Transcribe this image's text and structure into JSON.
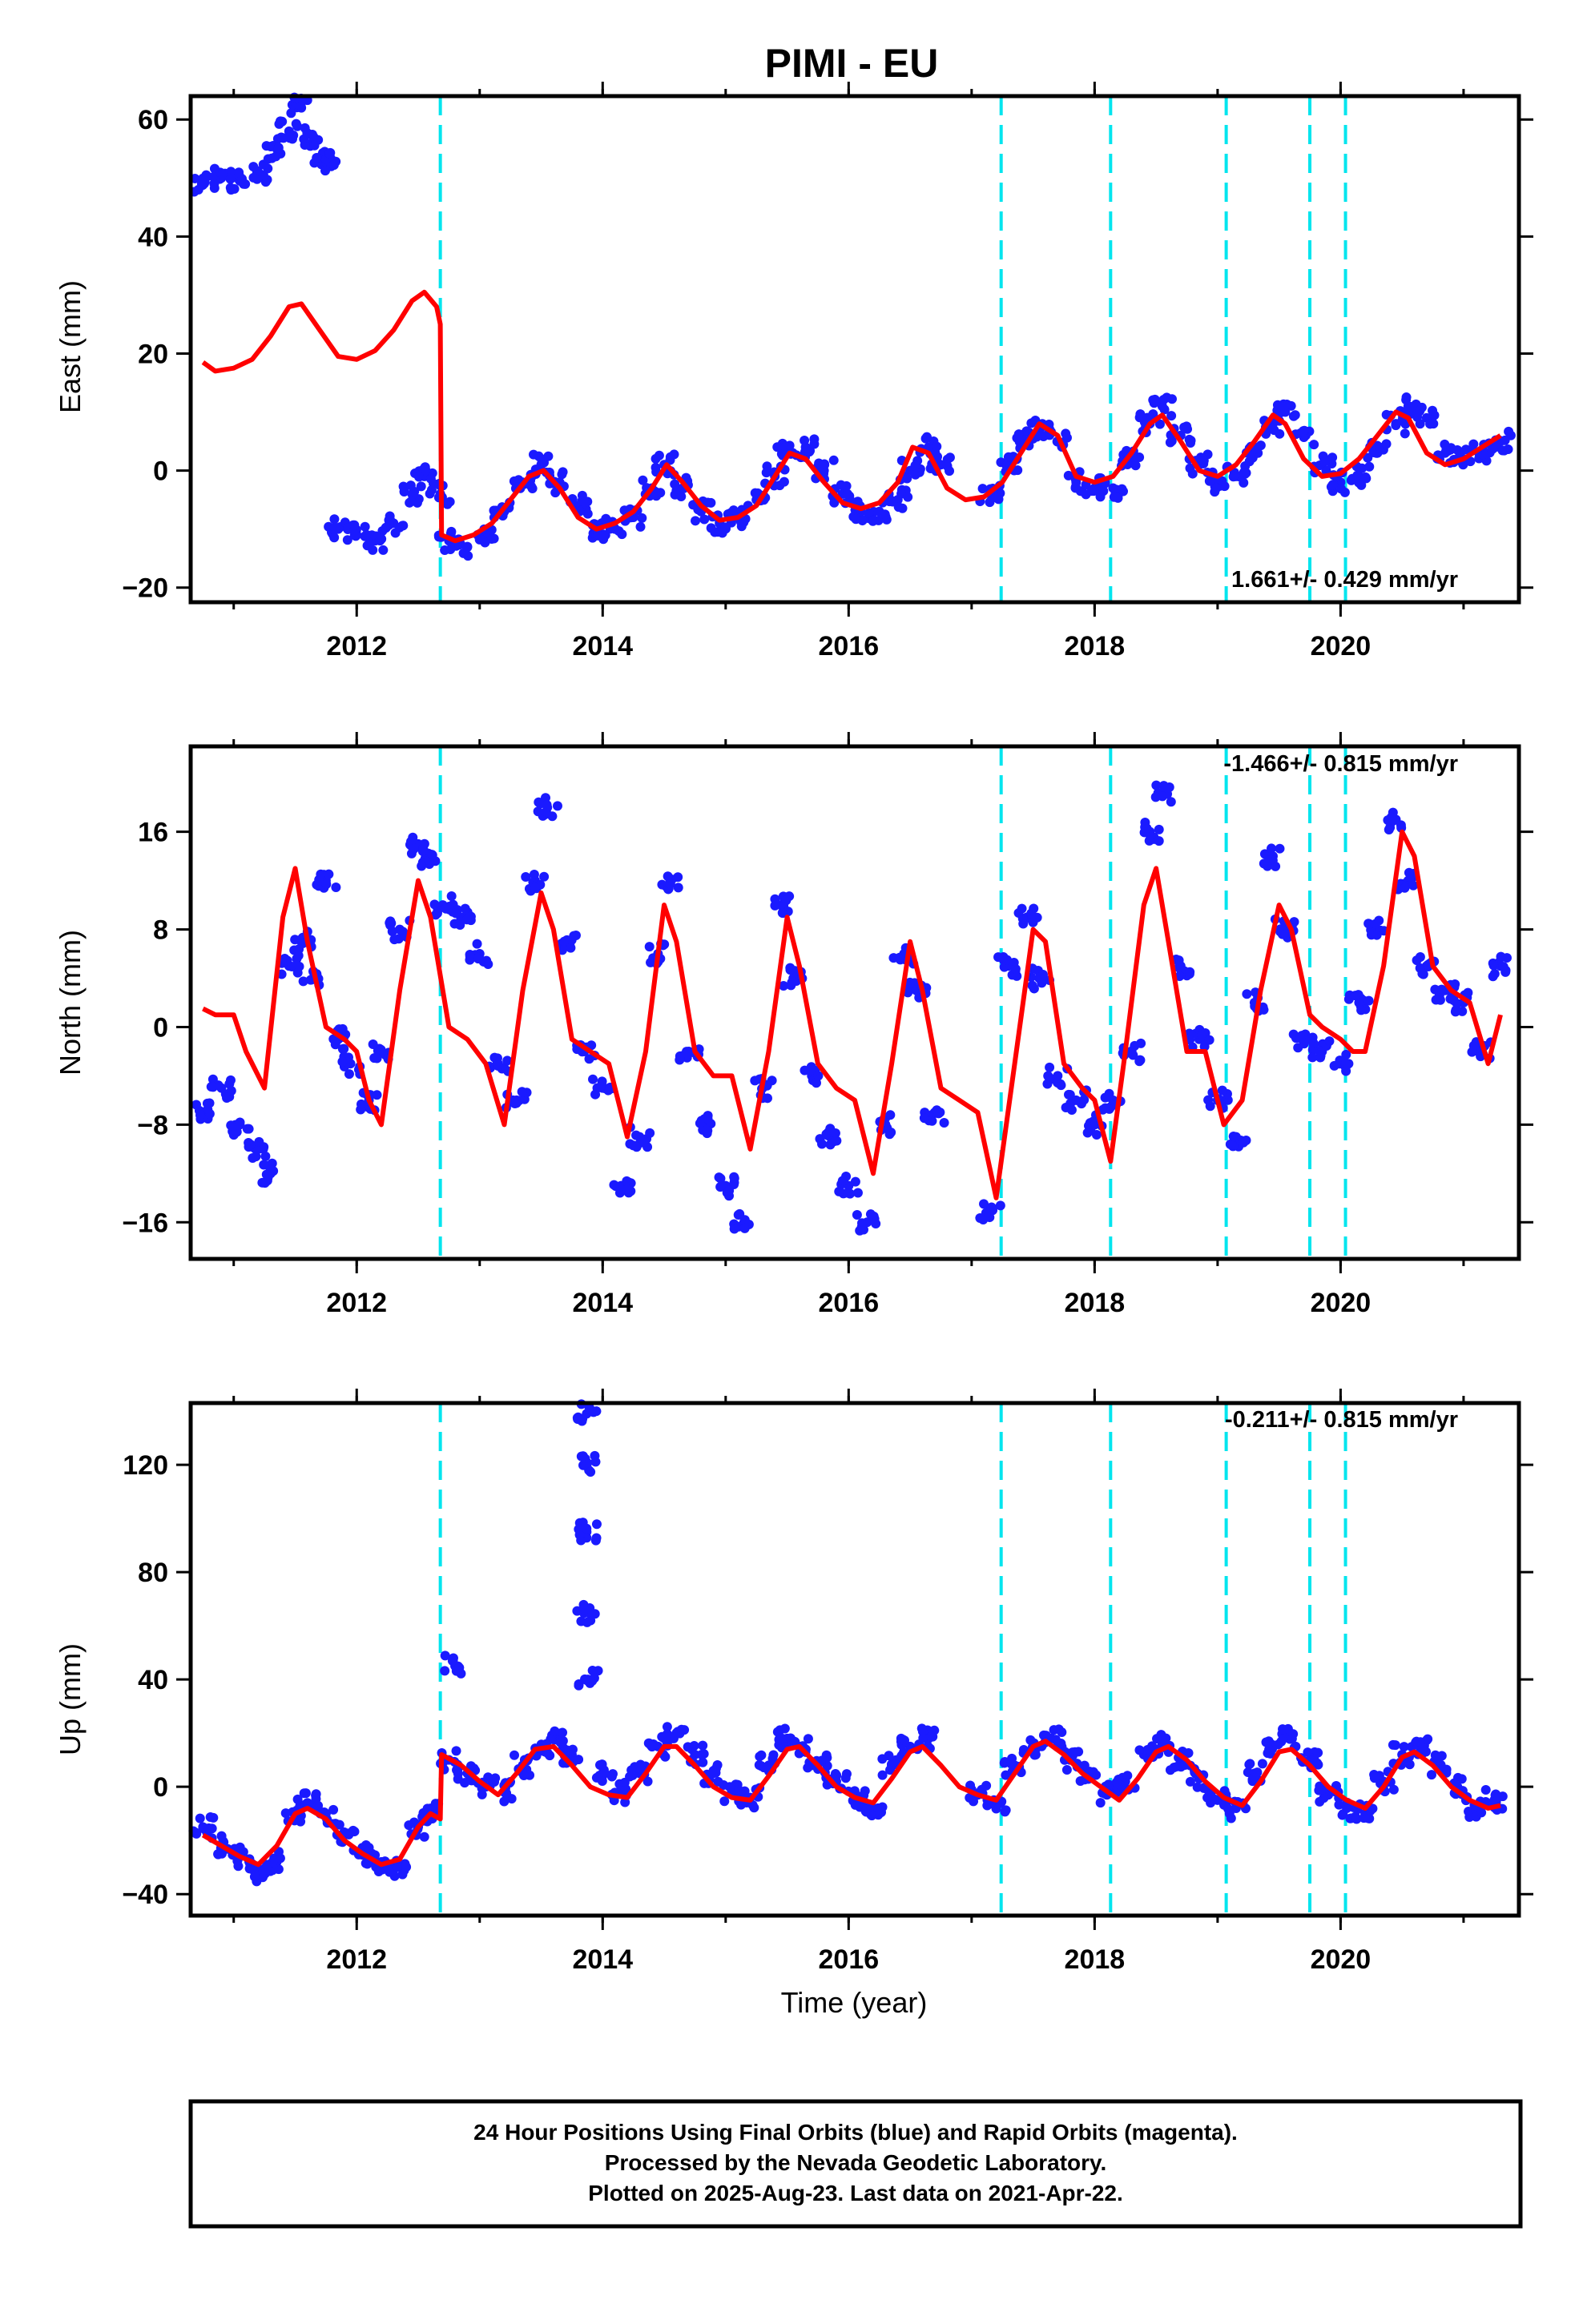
{
  "title": "PIMI - EU",
  "x_axis_label": "Time (year)",
  "x_ticks": [
    "2012",
    "2014",
    "2016",
    "2018",
    "2020"
  ],
  "caption": [
    "24 Hour Positions Using Final Orbits (blue) and Rapid Orbits (magenta).",
    "Processed by the Nevada Geodetic Laboratory.",
    "Plotted on 2025-Aug-23. Last data on 2021-Apr-22."
  ],
  "colors": {
    "data_points": "#1a1aff",
    "model_fit": "#ff0000",
    "event_lines": "#00e5ee",
    "frame": "#000000"
  },
  "chart_data": [
    {
      "type": "scatter",
      "name": "east",
      "ylabel": "East (mm)",
      "rate_label": "1.661+/- 0.429 mm/yr",
      "xlim": [
        2010.65,
        2021.45
      ],
      "ylim": [
        -22.5,
        64
      ],
      "yticks": [
        "60",
        "40",
        "20",
        "0",
        "−20"
      ],
      "event_lines": [
        2012.68,
        2017.24,
        2018.13,
        2019.07,
        2019.75,
        2020.04
      ],
      "series": [
        {
          "kind": "points",
          "x": [
            2010.75,
            2010.9,
            2011.05,
            2011.2,
            2011.35,
            2011.45,
            2011.55,
            2011.65,
            2011.72,
            2011.75,
            2011.85,
            2012.0,
            2012.15,
            2012.3,
            2012.45,
            2012.55,
            2012.68,
            2012.75,
            2012.9,
            2013.05,
            2013.2,
            2013.35,
            2013.5,
            2013.65,
            2013.8,
            2013.95,
            2014.1,
            2014.25,
            2014.4,
            2014.5,
            2014.65,
            2014.8,
            2014.95,
            2015.1,
            2015.25,
            2015.4,
            2015.5,
            2015.65,
            2015.8,
            2015.95,
            2016.1,
            2016.25,
            2016.4,
            2016.5,
            2016.65,
            2016.75,
            2017.15,
            2017.3,
            2017.45,
            2017.55,
            2017.7,
            2017.85,
            2018.0,
            2018.15,
            2018.3,
            2018.45,
            2018.55,
            2018.7,
            2018.85,
            2019.0,
            2019.15,
            2019.3,
            2019.45,
            2019.55,
            2019.7,
            2019.85,
            2020.0,
            2020.15,
            2020.3,
            2020.45,
            2020.55,
            2020.7,
            2020.85,
            2021.0,
            2021.15,
            2021.3
          ],
          "y": [
            49,
            50,
            49.5,
            51,
            55,
            58,
            62,
            57,
            54,
            53,
            -10,
            -11,
            -12,
            -9,
            -4,
            -1,
            -4,
            -12,
            -13,
            -11,
            -7,
            -2,
            1,
            -2,
            -6,
            -10,
            -10,
            -8,
            -3,
            1,
            -3,
            -7,
            -9,
            -8,
            -5,
            -1,
            3,
            4,
            0,
            -4,
            -7,
            -7,
            -5,
            0,
            4,
            1,
            -4,
            1,
            5,
            7,
            5,
            -2,
            -3,
            -3,
            2,
            8,
            11,
            6,
            1,
            -2,
            -1,
            3,
            8,
            10,
            6,
            1,
            -2,
            -1,
            3,
            8,
            11,
            9,
            3,
            2,
            3,
            5
          ]
        },
        {
          "kind": "line",
          "x": [
            2010.75,
            2010.85,
            2011.0,
            2011.15,
            2011.3,
            2011.45,
            2011.55,
            2011.7,
            2011.85,
            2012.0,
            2012.15,
            2012.3,
            2012.45,
            2012.55,
            2012.65,
            2012.68,
            2012.69,
            2012.8,
            2012.95,
            2013.1,
            2013.25,
            2013.4,
            2013.52,
            2013.65,
            2013.8,
            2013.95,
            2014.1,
            2014.25,
            2014.4,
            2014.52,
            2014.65,
            2014.8,
            2014.95,
            2015.1,
            2015.25,
            2015.4,
            2015.52,
            2015.65,
            2015.8,
            2015.95,
            2016.1,
            2016.25,
            2016.4,
            2016.52,
            2016.65,
            2016.8,
            2016.95,
            2017.1,
            2017.25,
            2017.4,
            2017.55,
            2017.7,
            2017.85,
            2018.0,
            2018.15,
            2018.3,
            2018.45,
            2018.55,
            2018.7,
            2018.85,
            2019.0,
            2019.15,
            2019.3,
            2019.45,
            2019.55,
            2019.7,
            2019.85,
            2020.0,
            2020.15,
            2020.3,
            2020.45,
            2020.55,
            2020.7,
            2020.85,
            2021.0,
            2021.15,
            2021.3
          ],
          "y": [
            18.5,
            17,
            17.5,
            19,
            23,
            28,
            28.5,
            24,
            19.5,
            19,
            20.5,
            24,
            29,
            30.5,
            28,
            25,
            -11,
            -12,
            -11,
            -9,
            -5,
            -1,
            0,
            -3,
            -8,
            -10,
            -9,
            -7,
            -3,
            1,
            -2,
            -6,
            -8.5,
            -8,
            -6,
            -1,
            3,
            2,
            -2,
            -5.5,
            -6.5,
            -5.5,
            -2,
            4,
            3,
            -3,
            -5,
            -4.5,
            -2,
            3,
            8,
            6,
            -1,
            -2,
            -1,
            3,
            8,
            9.5,
            5,
            0,
            -1,
            1,
            5,
            9.5,
            8,
            2,
            -1,
            -0.5,
            2,
            6,
            10,
            9,
            3,
            1,
            2,
            4,
            6
          ]
        }
      ]
    },
    {
      "type": "scatter",
      "name": "north",
      "ylabel": "North (mm)",
      "rate_label": "-1.466+/- 0.815 mm/yr",
      "xlim": [
        2010.65,
        2021.45
      ],
      "ylim": [
        -19,
        23
      ],
      "yticks": [
        "16",
        "8",
        "0",
        "−8",
        "−16"
      ],
      "event_lines": [
        2012.68,
        2017.24,
        2018.13,
        2019.07,
        2019.75,
        2020.04
      ],
      "series": [
        {
          "kind": "points",
          "x": [
            2010.75,
            2010.9,
            2011.05,
            2011.2,
            2011.3,
            2011.45,
            2011.55,
            2011.65,
            2011.75,
            2011.85,
            2011.95,
            2012.1,
            2012.2,
            2012.35,
            2012.5,
            2012.6,
            2012.7,
            2012.85,
            2013.0,
            2013.15,
            2013.3,
            2013.45,
            2013.55,
            2013.7,
            2013.85,
            2014.0,
            2014.15,
            2014.3,
            2014.45,
            2014.55,
            2014.7,
            2014.85,
            2015.0,
            2015.15,
            2015.3,
            2015.45,
            2015.55,
            2015.7,
            2015.85,
            2016.0,
            2016.15,
            2016.3,
            2016.45,
            2016.55,
            2016.7,
            2017.15,
            2017.3,
            2017.45,
            2017.55,
            2017.7,
            2017.85,
            2018.0,
            2018.15,
            2018.3,
            2018.45,
            2018.55,
            2018.7,
            2018.85,
            2019.0,
            2019.15,
            2019.3,
            2019.45,
            2019.55,
            2019.7,
            2019.85,
            2020.0,
            2020.15,
            2020.3,
            2020.45,
            2020.55,
            2020.7,
            2020.85,
            2021.0,
            2021.15,
            2021.3
          ],
          "y": [
            -7,
            -5,
            -8,
            -10,
            -12,
            5,
            7,
            4,
            12,
            -1,
            -3,
            -6,
            -2,
            8,
            15,
            14,
            10,
            9,
            6,
            -3,
            -6,
            12,
            18,
            7,
            -2,
            -5,
            -13,
            -9,
            6,
            12,
            -2,
            -8,
            -13,
            -16,
            -5,
            10,
            4,
            -4,
            -9,
            -13,
            -16,
            -8,
            6,
            3,
            -7,
            -15,
            5,
            9,
            4,
            -4,
            -6,
            -8,
            -6,
            -2,
            16,
            19,
            5,
            -1,
            -6,
            -9,
            2,
            14,
            8,
            -1,
            -2,
            -3,
            2,
            8,
            17,
            12,
            5,
            3,
            2,
            -2,
            5
          ]
        },
        {
          "kind": "line",
          "x": [
            2010.75,
            2010.85,
            2011.0,
            2011.1,
            2011.25,
            2011.4,
            2011.5,
            2011.6,
            2011.75,
            2011.9,
            2012.0,
            2012.1,
            2012.2,
            2012.35,
            2012.5,
            2012.6,
            2012.75,
            2012.9,
            2013.05,
            2013.2,
            2013.35,
            2013.5,
            2013.6,
            2013.75,
            2013.9,
            2014.05,
            2014.2,
            2014.35,
            2014.5,
            2014.6,
            2014.75,
            2014.9,
            2015.05,
            2015.2,
            2015.35,
            2015.5,
            2015.6,
            2015.75,
            2015.9,
            2016.05,
            2016.2,
            2016.35,
            2016.5,
            2016.6,
            2016.75,
            2016.9,
            2017.05,
            2017.2,
            2017.35,
            2017.5,
            2017.6,
            2017.75,
            2017.9,
            2018.0,
            2018.13,
            2018.25,
            2018.4,
            2018.5,
            2018.6,
            2018.75,
            2018.9,
            2019.05,
            2019.2,
            2019.35,
            2019.5,
            2019.6,
            2019.75,
            2019.85,
            2020.0,
            2020.1,
            2020.2,
            2020.35,
            2020.5,
            2020.6,
            2020.75,
            2020.9,
            2021.05,
            2021.2,
            2021.3
          ],
          "y": [
            1.5,
            1,
            1,
            -2,
            -5,
            9,
            13,
            7,
            0,
            -1,
            -2,
            -6,
            -8,
            3,
            12,
            9,
            0,
            -1,
            -3,
            -8,
            3,
            11,
            8,
            -1,
            -2,
            -3,
            -9,
            -2,
            10,
            7,
            -2,
            -4,
            -4,
            -10,
            -2,
            9,
            5,
            -3,
            -5,
            -6,
            -12,
            -3,
            7,
            3,
            -5,
            -6,
            -7,
            -14,
            -3,
            8,
            7,
            -3,
            -5,
            -6,
            -11,
            -2,
            10,
            13,
            7,
            -2,
            -2,
            -8,
            -6,
            3,
            10,
            8,
            1,
            0,
            -1,
            -2,
            -2,
            5,
            16,
            14,
            5,
            3,
            2,
            -3,
            1
          ]
        }
      ]
    },
    {
      "type": "scatter",
      "name": "up",
      "ylabel": "Up (mm)",
      "rate_label": "-0.211+/- 0.815 mm/yr",
      "xlim": [
        2010.65,
        2021.45
      ],
      "ylim": [
        -48,
        143
      ],
      "yticks": [
        "120",
        "80",
        "40",
        "0",
        "−40"
      ],
      "event_lines": [
        2012.68,
        2017.24,
        2018.13,
        2019.07,
        2019.75,
        2020.04
      ],
      "series": [
        {
          "kind": "points",
          "x": [
            2010.75,
            2010.9,
            2011.05,
            2011.2,
            2011.35,
            2011.5,
            2011.6,
            2011.75,
            2011.9,
            2012.05,
            2012.2,
            2012.35,
            2012.5,
            2012.6,
            2012.75,
            2012.8,
            2012.9,
            2013.05,
            2013.2,
            2013.35,
            2013.5,
            2013.6,
            2013.75,
            2013.87,
            2013.87,
            2013.87,
            2013.87,
            2013.88,
            2014.0,
            2014.15,
            2014.3,
            2014.45,
            2014.6,
            2014.75,
            2014.9,
            2015.05,
            2015.2,
            2015.35,
            2015.5,
            2015.6,
            2015.75,
            2015.9,
            2016.05,
            2016.2,
            2016.35,
            2016.5,
            2016.65,
            2017.05,
            2017.2,
            2017.35,
            2017.5,
            2017.65,
            2017.8,
            2017.95,
            2018.1,
            2018.25,
            2018.4,
            2018.55,
            2018.7,
            2018.85,
            2019.0,
            2019.15,
            2019.3,
            2019.45,
            2019.6,
            2019.75,
            2019.9,
            2020.05,
            2020.2,
            2020.35,
            2020.5,
            2020.65,
            2020.8,
            2020.95,
            2021.1,
            2021.25
          ],
          "y": [
            -15,
            -22,
            -26,
            -32,
            -28,
            -12,
            -6,
            -10,
            -18,
            -25,
            -28,
            -30,
            -15,
            -10,
            10,
            45,
            5,
            0,
            -2,
            8,
            15,
            18,
            12,
            139,
            120,
            95,
            65,
            40,
            5,
            -2,
            5,
            15,
            20,
            12,
            5,
            -2,
            -4,
            8,
            18,
            15,
            8,
            2,
            -5,
            -8,
            8,
            15,
            18,
            -3,
            -6,
            8,
            15,
            18,
            10,
            5,
            -3,
            2,
            12,
            16,
            10,
            3,
            -5,
            -8,
            5,
            15,
            18,
            10,
            -3,
            -8,
            -10,
            2,
            12,
            14,
            8,
            0,
            -8,
            -5
          ]
        },
        {
          "kind": "line",
          "x": [
            2010.75,
            2010.9,
            2011.05,
            2011.2,
            2011.35,
            2011.5,
            2011.6,
            2011.75,
            2011.9,
            2012.05,
            2012.2,
            2012.35,
            2012.5,
            2012.6,
            2012.68,
            2012.69,
            2012.85,
            2013.0,
            2013.15,
            2013.3,
            2013.45,
            2013.6,
            2013.75,
            2013.9,
            2014.05,
            2014.2,
            2014.35,
            2014.5,
            2014.6,
            2014.75,
            2014.9,
            2015.05,
            2015.2,
            2015.35,
            2015.5,
            2015.6,
            2015.75,
            2015.9,
            2016.05,
            2016.2,
            2016.35,
            2016.5,
            2016.6,
            2016.75,
            2016.9,
            2017.05,
            2017.2,
            2017.35,
            2017.5,
            2017.6,
            2017.75,
            2017.9,
            2018.05,
            2018.2,
            2018.35,
            2018.5,
            2018.6,
            2018.75,
            2018.9,
            2019.05,
            2019.2,
            2019.35,
            2019.5,
            2019.6,
            2019.75,
            2019.9,
            2020.05,
            2020.2,
            2020.35,
            2020.5,
            2020.6,
            2020.75,
            2020.9,
            2021.05,
            2021.2,
            2021.3
          ],
          "y": [
            -18,
            -22,
            -26,
            -29,
            -22,
            -10,
            -8,
            -12,
            -20,
            -25,
            -29,
            -27,
            -15,
            -10,
            -12,
            12,
            8,
            2,
            -3,
            5,
            14,
            15,
            8,
            0,
            -3,
            -4,
            5,
            15,
            15,
            8,
            0,
            -4,
            -5,
            4,
            14,
            15,
            8,
            0,
            -4,
            -6,
            3,
            13,
            15,
            8,
            0,
            -3,
            -5,
            5,
            15,
            17,
            12,
            5,
            0,
            -5,
            3,
            13,
            15,
            10,
            2,
            -4,
            -7,
            2,
            13,
            14,
            8,
            0,
            -5,
            -8,
            0,
            11,
            13,
            8,
            0,
            -5,
            -8,
            -7
          ]
        }
      ]
    }
  ]
}
